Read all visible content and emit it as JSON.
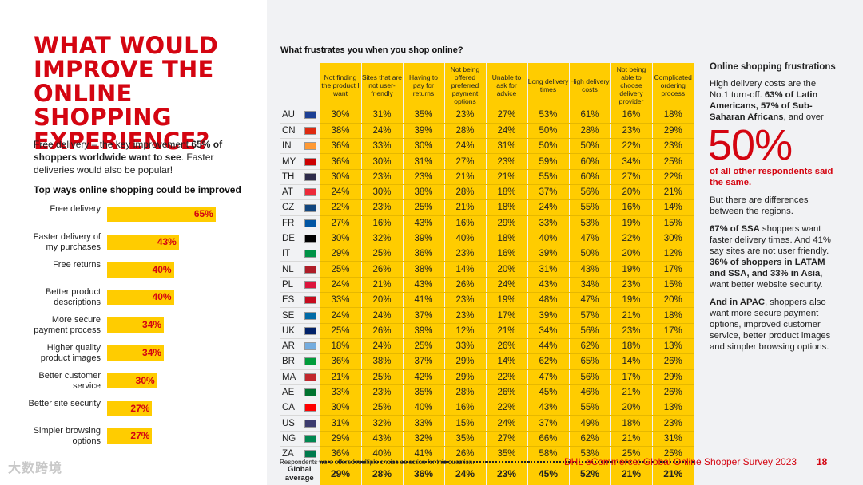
{
  "headline": "WHAT WOULD IMPROVE THE ONLINE SHOPPING EXPERIENCE?",
  "intro": {
    "part1": "Free delivery – the key improvement ",
    "bold": "65% of shoppers worldwide want to see",
    "part2": ". Faster deliveries would also be popular!"
  },
  "bars_title": "Top ways online shopping could be improved",
  "bars": [
    {
      "label": "Free delivery",
      "value": 65,
      "value_label": "65%"
    },
    {
      "label": "Faster delivery of my purchases",
      "value": 43,
      "value_label": "43%"
    },
    {
      "label": "Free returns",
      "value": 40,
      "value_label": "40%"
    },
    {
      "label": "Better product descriptions",
      "value": 40,
      "value_label": "40%"
    },
    {
      "label": "More secure payment process",
      "value": 34,
      "value_label": "34%"
    },
    {
      "label": "Higher quality product images",
      "value": 34,
      "value_label": "34%"
    },
    {
      "label": "Better customer service",
      "value": 30,
      "value_label": "30%"
    },
    {
      "label": "Better site security",
      "value": 27,
      "value_label": "27%"
    },
    {
      "label": "Simpler browsing options",
      "value": 27,
      "value_label": "27%"
    }
  ],
  "watermark": "大数跨境",
  "table": {
    "title": "What frustrates you when you shop online?",
    "columns": [
      "Not finding the product I want",
      "Sites that are not user-friendly",
      "Having to pay for returns",
      "Not being offered preferred payment options",
      "Unable to ask for advice",
      "Long delivery times",
      "High delivery costs",
      "Not being able to choose delivery provider",
      "Complicated ordering process"
    ],
    "rows": [
      {
        "code": "AU",
        "flag": "#1c3f94",
        "values": [
          "30%",
          "31%",
          "35%",
          "23%",
          "27%",
          "53%",
          "61%",
          "16%",
          "18%"
        ]
      },
      {
        "code": "CN",
        "flag": "#de2910",
        "values": [
          "38%",
          "24%",
          "39%",
          "28%",
          "24%",
          "50%",
          "28%",
          "23%",
          "29%"
        ]
      },
      {
        "code": "IN",
        "flag": "#ff9933",
        "values": [
          "36%",
          "33%",
          "30%",
          "24%",
          "31%",
          "50%",
          "50%",
          "22%",
          "23%"
        ]
      },
      {
        "code": "MY",
        "flag": "#cc0001",
        "values": [
          "36%",
          "30%",
          "31%",
          "27%",
          "23%",
          "59%",
          "60%",
          "34%",
          "25%"
        ]
      },
      {
        "code": "TH",
        "flag": "#2d2a4a",
        "values": [
          "30%",
          "23%",
          "23%",
          "21%",
          "21%",
          "55%",
          "60%",
          "27%",
          "22%"
        ]
      },
      {
        "code": "AT",
        "flag": "#ed2939",
        "values": [
          "24%",
          "30%",
          "38%",
          "28%",
          "18%",
          "37%",
          "56%",
          "20%",
          "21%"
        ]
      },
      {
        "code": "CZ",
        "flag": "#11457e",
        "values": [
          "22%",
          "23%",
          "25%",
          "21%",
          "18%",
          "24%",
          "55%",
          "16%",
          "14%"
        ]
      },
      {
        "code": "FR",
        "flag": "#0055a4",
        "values": [
          "27%",
          "16%",
          "43%",
          "16%",
          "29%",
          "33%",
          "53%",
          "19%",
          "15%"
        ]
      },
      {
        "code": "DE",
        "flag": "#000000",
        "values": [
          "30%",
          "32%",
          "39%",
          "40%",
          "18%",
          "40%",
          "47%",
          "22%",
          "30%"
        ]
      },
      {
        "code": "IT",
        "flag": "#009246",
        "values": [
          "29%",
          "25%",
          "36%",
          "23%",
          "16%",
          "39%",
          "50%",
          "20%",
          "12%"
        ]
      },
      {
        "code": "NL",
        "flag": "#ae1c28",
        "values": [
          "25%",
          "26%",
          "38%",
          "14%",
          "20%",
          "31%",
          "43%",
          "19%",
          "17%"
        ]
      },
      {
        "code": "PL",
        "flag": "#dc143c",
        "values": [
          "24%",
          "21%",
          "43%",
          "26%",
          "24%",
          "43%",
          "34%",
          "23%",
          "15%"
        ]
      },
      {
        "code": "ES",
        "flag": "#c60b1e",
        "values": [
          "33%",
          "20%",
          "41%",
          "23%",
          "19%",
          "48%",
          "47%",
          "19%",
          "20%"
        ]
      },
      {
        "code": "SE",
        "flag": "#006aa7",
        "values": [
          "24%",
          "24%",
          "37%",
          "23%",
          "17%",
          "39%",
          "57%",
          "21%",
          "18%"
        ]
      },
      {
        "code": "UK",
        "flag": "#012169",
        "values": [
          "25%",
          "26%",
          "39%",
          "12%",
          "21%",
          "34%",
          "56%",
          "23%",
          "17%"
        ]
      },
      {
        "code": "AR",
        "flag": "#74acdf",
        "values": [
          "18%",
          "24%",
          "25%",
          "33%",
          "26%",
          "44%",
          "62%",
          "18%",
          "13%"
        ]
      },
      {
        "code": "BR",
        "flag": "#009c3b",
        "values": [
          "36%",
          "38%",
          "37%",
          "29%",
          "14%",
          "62%",
          "65%",
          "14%",
          "26%"
        ]
      },
      {
        "code": "MA",
        "flag": "#c1272d",
        "values": [
          "21%",
          "25%",
          "42%",
          "29%",
          "22%",
          "47%",
          "56%",
          "17%",
          "29%"
        ]
      },
      {
        "code": "AE",
        "flag": "#00732f",
        "values": [
          "33%",
          "23%",
          "35%",
          "28%",
          "26%",
          "45%",
          "46%",
          "21%",
          "26%"
        ]
      },
      {
        "code": "CA",
        "flag": "#ff0000",
        "values": [
          "30%",
          "25%",
          "40%",
          "16%",
          "22%",
          "43%",
          "55%",
          "20%",
          "13%"
        ]
      },
      {
        "code": "US",
        "flag": "#3c3b6e",
        "values": [
          "31%",
          "32%",
          "33%",
          "15%",
          "24%",
          "37%",
          "49%",
          "18%",
          "23%"
        ]
      },
      {
        "code": "NG",
        "flag": "#008751",
        "values": [
          "29%",
          "43%",
          "32%",
          "35%",
          "27%",
          "66%",
          "62%",
          "21%",
          "31%"
        ]
      },
      {
        "code": "ZA",
        "flag": "#007a4d",
        "values": [
          "36%",
          "40%",
          "41%",
          "26%",
          "35%",
          "58%",
          "53%",
          "25%",
          "25%"
        ]
      }
    ],
    "average": {
      "label": "Global average",
      "values": [
        "29%",
        "28%",
        "36%",
        "24%",
        "23%",
        "45%",
        "52%",
        "21%",
        "21%"
      ]
    }
  },
  "sidebar": {
    "title": "Online shopping frustrations",
    "p1_part1": "High delivery costs are the No.1 turn-off. ",
    "p1_bold": "63% of Latin Americans, 57% of Sub-Saharan Africans",
    "p1_part2": ", and over",
    "big": "50%",
    "red": "of all other respondents said the same.",
    "p2": "But there are differences between the regions.",
    "p3_bold1": "67% of SSA",
    "p3_part1": " shoppers want faster delivery times. And 41% say sites are not user friendly. ",
    "p3_bold2": "36% of shoppers in LATAM and SSA, and 33% in Asia",
    "p3_part2": ", want better website security.",
    "p4_bold": "And in APAC",
    "p4_part": ", shoppers also want more secure payment options, improved customer service, better product images and simpler browsing options."
  },
  "footnote": "Respondents were offered multiple choice selection for this question.",
  "footer": "DHL eCommerce: Global Online Shopper Survey 2023",
  "page_number": "18",
  "colors": {
    "brand_red": "#d40511",
    "brand_yellow": "#ffcc00"
  }
}
